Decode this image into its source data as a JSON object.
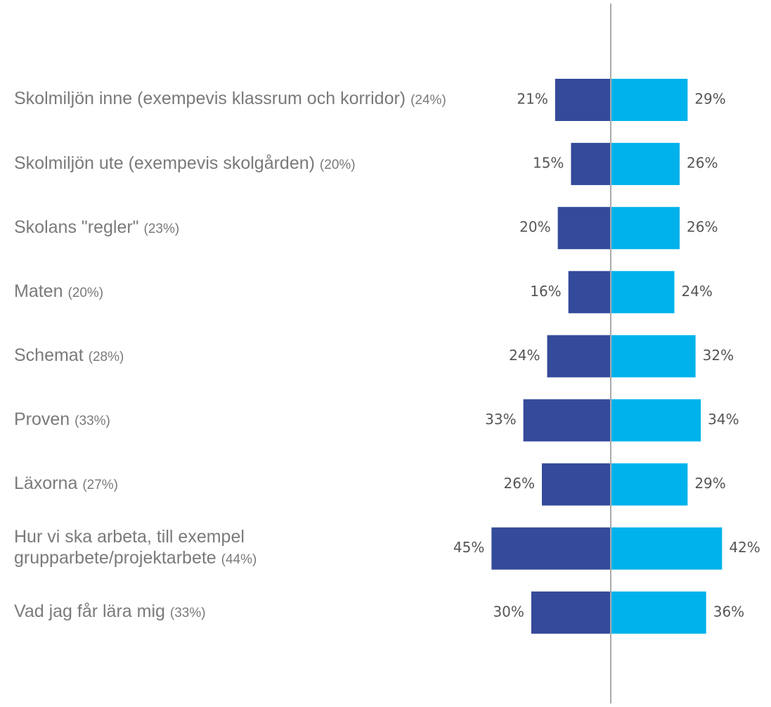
{
  "chart_data": {
    "type": "diverging-bar",
    "categories": [
      "Skolmiljön inne (exempevis klassrum och korridor)",
      "Skolmiljön ute (exempevis skolgården)",
      "Skolans \"regler\"",
      "Maten",
      "Schemat",
      "Proven",
      "Läxorna",
      "Hur vi ska arbeta, till exempel grupparbete/projektarbete",
      "Vad jag får lära mig"
    ],
    "overall": [
      24,
      20,
      23,
      20,
      28,
      33,
      27,
      44,
      33
    ],
    "overall_labels": [
      "(24%)",
      "(20%)",
      "(23%)",
      "(20%)",
      "(28%)",
      "(33%)",
      "(27%)",
      "(44%)",
      "(33%)"
    ],
    "series": [
      {
        "color": "#344a9a",
        "values": [
          21,
          15,
          20,
          16,
          24,
          33,
          26,
          45,
          30
        ],
        "value_labels": [
          "21%",
          "15%",
          "20%",
          "16%",
          "24%",
          "33%",
          "26%",
          "45%",
          "30%"
        ]
      },
      {
        "color": "#00b2eb",
        "values": [
          29,
          26,
          26,
          24,
          32,
          34,
          29,
          42,
          36
        ],
        "value_labels": [
          "29%",
          "26%",
          "26%",
          "24%",
          "32%",
          "34%",
          "29%",
          "42%",
          "36%"
        ]
      }
    ]
  }
}
